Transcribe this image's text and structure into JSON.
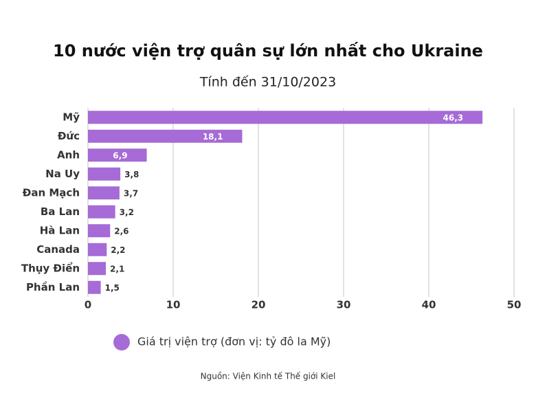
{
  "chart_data": {
    "type": "bar",
    "orientation": "horizontal",
    "title": "10 nước viện trợ quân sự lớn nhất cho Ukraine",
    "subtitle": "Tính đến 31/10/2023",
    "categories": [
      "Mỹ",
      "Đức",
      "Anh",
      "Na Uy",
      "Đan Mạch",
      "Ba Lan",
      "Hà Lan",
      "Canada",
      "Thụy Điển",
      "Phần Lan"
    ],
    "series": [
      {
        "name": "Giá trị viện trợ (đơn vị: tỷ đô la Mỹ)",
        "color": "#a66bd6",
        "values": [
          46.3,
          18.1,
          6.9,
          3.8,
          3.7,
          3.2,
          2.6,
          2.2,
          2.1,
          1.5
        ],
        "value_labels": [
          "46,3",
          "18,1",
          "6,9",
          "3,8",
          "3,7",
          "3,2",
          "2,6",
          "2,2",
          "2,1",
          "1,5"
        ]
      }
    ],
    "xlim": [
      0,
      50
    ],
    "xticks": [
      0,
      10,
      20,
      30,
      40,
      50
    ],
    "grid": true,
    "legend": "bottom",
    "source": "Nguồn: Viện Kinh tế Thế giới Kiel"
  }
}
